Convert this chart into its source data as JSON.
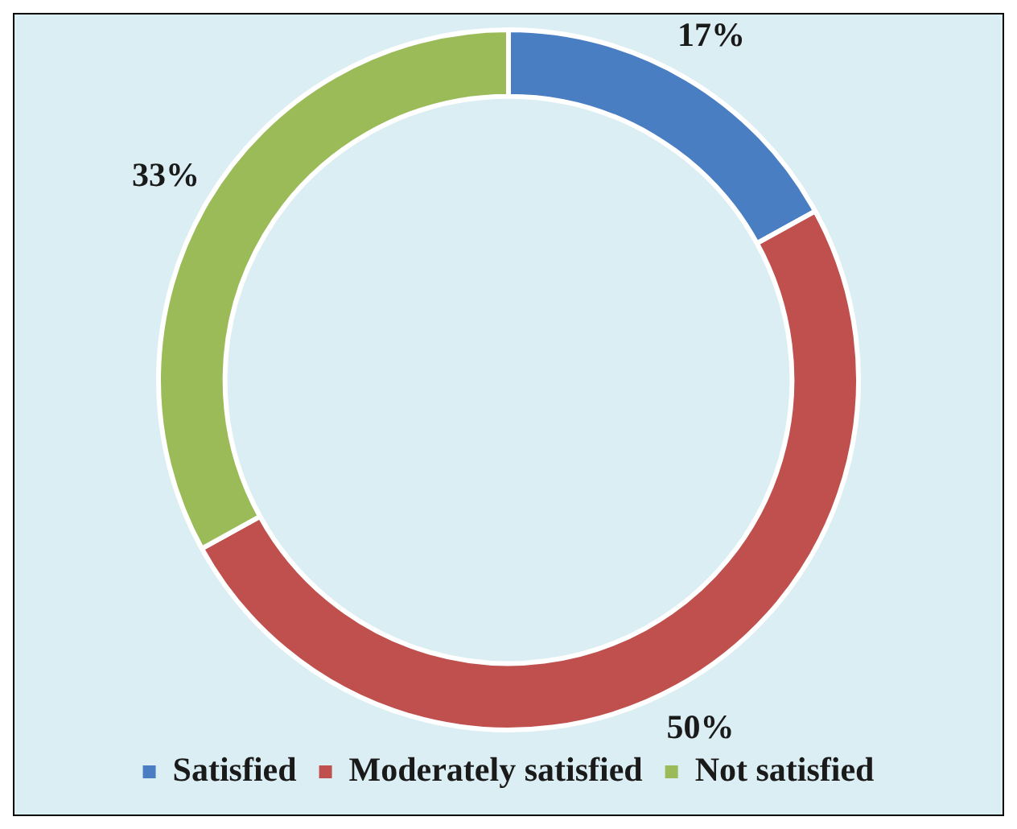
{
  "chart_data": {
    "type": "donut",
    "categories": [
      "Satisfied",
      "Moderately satisfied",
      "Not satisfied"
    ],
    "values": [
      17,
      50,
      33
    ],
    "colors": [
      "#4a7ec2",
      "#c0504d",
      "#9bbb59"
    ],
    "value_labels": [
      "17%",
      "50%",
      "33%"
    ],
    "legend": "bottom"
  }
}
